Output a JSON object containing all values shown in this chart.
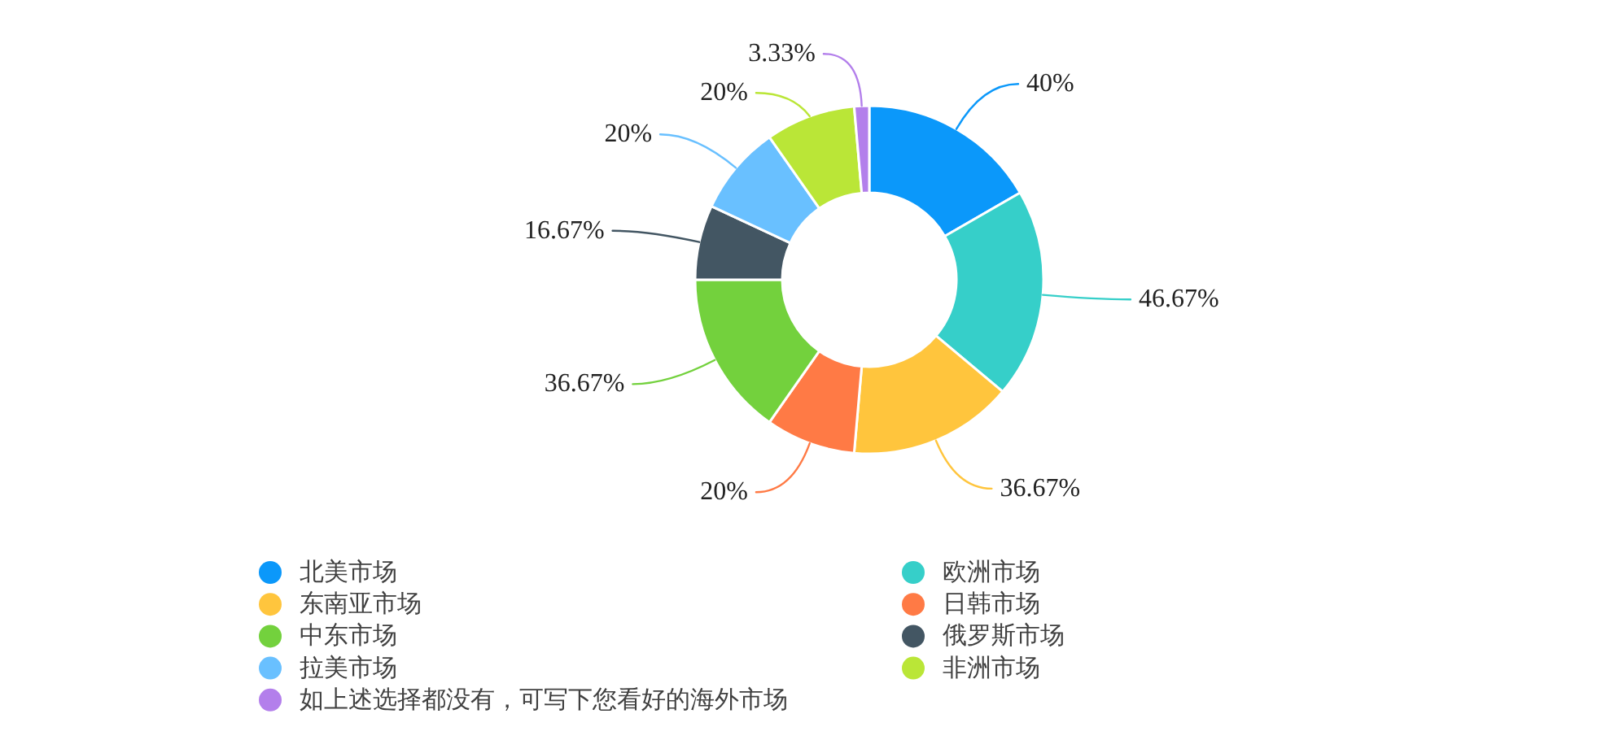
{
  "chart_data": {
    "type": "donut",
    "categories": [
      "北美市场",
      "欧洲市场",
      "东南亚市场",
      "日韩市场",
      "中东市场",
      "俄罗斯市场",
      "拉美市场",
      "非洲市场",
      "如上述选择都没有，可写下您看好的海外市场"
    ],
    "values": [
      40,
      46.67,
      36.67,
      20,
      36.67,
      16.67,
      20,
      20,
      3.33
    ],
    "colors": [
      "#0b98fa",
      "#36cfc9",
      "#ffc53d",
      "#ff7a45",
      "#73d13d",
      "#435663",
      "#69c0ff",
      "#bae637",
      "#b37feb"
    ],
    "value_labels": [
      "40%",
      "46.67%",
      "36.67%",
      "20%",
      "36.67%",
      "16.67%",
      "20%",
      "20%",
      "3.33%"
    ],
    "legend": "bottom"
  }
}
